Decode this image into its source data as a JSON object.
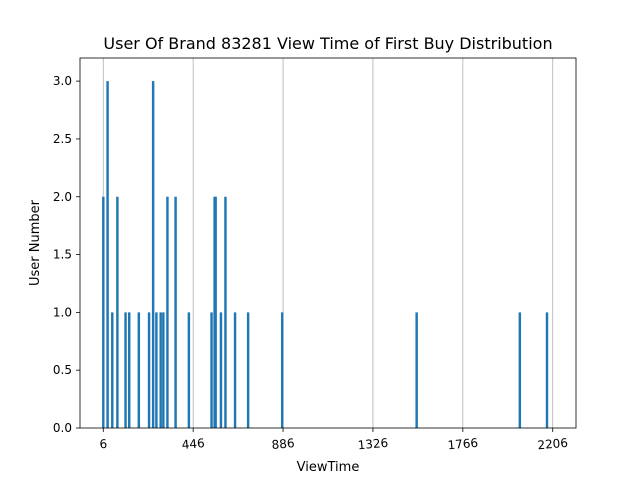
{
  "chart_data": {
    "type": "bar",
    "title": "User Of Brand 83281 View Time of First Buy Distribution",
    "xlabel": "ViewTime",
    "ylabel": "User Number",
    "xlim": [
      -108,
      2320
    ],
    "ylim": [
      0,
      3.2
    ],
    "x_ticks": [
      6,
      446,
      886,
      1326,
      1766,
      2206
    ],
    "x_tick_labels": [
      "6",
      "446",
      "886",
      "1326",
      "1766",
      "2206"
    ],
    "y_ticks": [
      0.0,
      0.5,
      1.0,
      1.5,
      2.0,
      2.5,
      3.0
    ],
    "y_tick_labels": [
      "0.0",
      "0.5",
      "1.0",
      "1.5",
      "2.0",
      "2.5",
      "3.0"
    ],
    "grid": "vertical lines at x ticks",
    "bar_color": "#1f77b4",
    "bar_width": 12,
    "x": [
      6,
      27,
      50,
      75,
      115,
      133,
      180,
      230,
      250,
      266,
      287,
      300,
      320,
      360,
      425,
      536,
      551,
      556,
      582,
      604,
      651,
      715,
      882,
      1540,
      2045,
      2178
    ],
    "values": [
      2,
      3,
      1,
      2,
      1,
      1,
      1,
      1,
      3,
      1,
      1,
      1,
      2,
      2,
      1,
      1,
      2,
      2,
      1,
      2,
      1,
      1,
      1,
      1,
      1,
      1
    ]
  }
}
